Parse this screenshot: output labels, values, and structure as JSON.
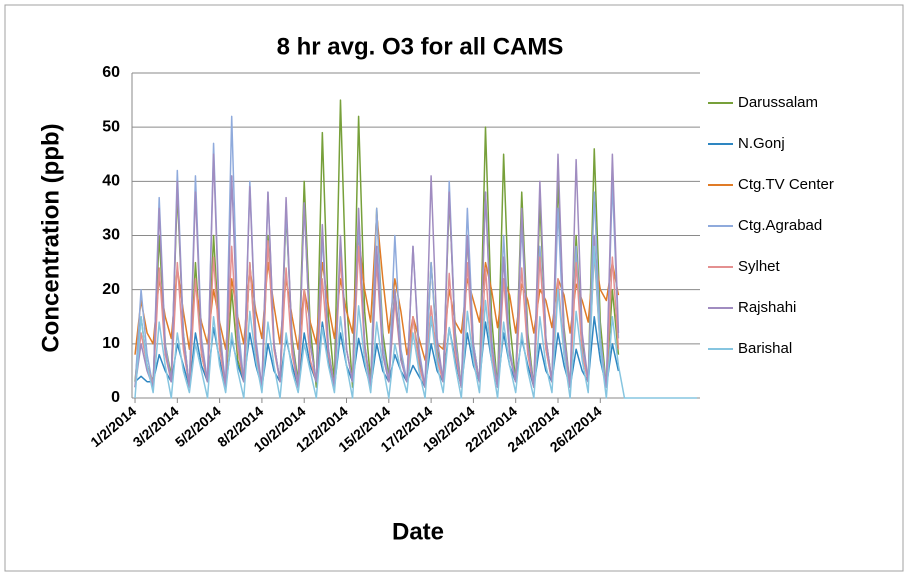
{
  "chart_data": {
    "type": "line",
    "title": "8 hr avg. O3 for all CAMS",
    "x_label": "Date",
    "y_label": "Concentration (ppb)",
    "categories": [
      "1/2/2014",
      null,
      null,
      null,
      null,
      null,
      null,
      "3/2/2014",
      null,
      null,
      null,
      null,
      null,
      null,
      "5/2/2014",
      null,
      null,
      null,
      null,
      null,
      null,
      "8/2/2014",
      null,
      null,
      null,
      null,
      null,
      null,
      "10/2/2014",
      null,
      null,
      null,
      null,
      null,
      null,
      "12/2/2014",
      null,
      null,
      null,
      null,
      null,
      null,
      "15/2/2014",
      null,
      null,
      null,
      null,
      null,
      null,
      "17/2/2014",
      null,
      null,
      null,
      null,
      null,
      null,
      "19/2/2014",
      null,
      null,
      null,
      null,
      null,
      null,
      "22/2/2014",
      null,
      null,
      null,
      null,
      null,
      null,
      "24/2/2014",
      null,
      null,
      null,
      null,
      null,
      null,
      "26/2/2014",
      null,
      null,
      null,
      null,
      null,
      null,
      null,
      null,
      null,
      null,
      null,
      null,
      null,
      null,
      null,
      null
    ],
    "ylim": [
      0,
      60
    ],
    "yticks": [
      0,
      10,
      20,
      30,
      40,
      50,
      60
    ],
    "grid": true,
    "legend": "right",
    "series": [
      {
        "name": "Darussalam",
        "color": "#77a03a",
        "values": [
          3,
          15,
          6,
          3,
          30,
          10,
          4,
          38,
          12,
          2,
          25,
          8,
          3,
          30,
          10,
          2,
          20,
          7,
          3,
          25,
          9,
          2,
          30,
          10,
          3,
          34,
          11,
          3,
          40,
          13,
          2,
          49,
          15,
          3,
          55,
          18,
          2,
          52,
          16,
          3,
          35,
          12,
          4,
          20,
          8,
          3,
          15,
          7,
          2,
          25,
          9,
          3,
          37,
          12,
          2,
          30,
          10,
          3,
          50,
          15,
          2,
          45,
          14,
          3,
          38,
          12,
          2,
          36,
          11,
          3,
          40,
          13,
          2,
          30,
          10,
          3,
          46,
          14,
          2,
          20,
          8,
          null,
          null,
          null,
          null,
          null,
          null,
          null,
          null,
          null,
          null,
          null,
          null,
          null
        ]
      },
      {
        "name": "N.Gonj",
        "color": "#2e86c1",
        "values": [
          3,
          4,
          3,
          3,
          8,
          5,
          3,
          10,
          6,
          2,
          12,
          6,
          3,
          13,
          7,
          2,
          11,
          6,
          3,
          12,
          6,
          2,
          10,
          5,
          3,
          11,
          6,
          2,
          12,
          6,
          3,
          14,
          7,
          2,
          12,
          6,
          3,
          11,
          6,
          2,
          10,
          5,
          3,
          8,
          5,
          3,
          6,
          4,
          2,
          10,
          5,
          3,
          13,
          7,
          2,
          12,
          6,
          3,
          14,
          7,
          2,
          12,
          6,
          3,
          11,
          6,
          2,
          10,
          5,
          3,
          12,
          6,
          2,
          9,
          5,
          3,
          15,
          7,
          2,
          10,
          5,
          null,
          null,
          null,
          null,
          null,
          null,
          null,
          null,
          null,
          null,
          null,
          null,
          null
        ]
      },
      {
        "name": "Ctg.TV Center",
        "color": "#e07b26",
        "values": [
          8,
          18,
          12,
          10,
          22,
          15,
          11,
          24,
          16,
          9,
          21,
          14,
          10,
          20,
          14,
          9,
          22,
          15,
          10,
          24,
          16,
          11,
          25,
          17,
          10,
          22,
          15,
          9,
          20,
          14,
          10,
          25,
          17,
          11,
          22,
          16,
          12,
          30,
          20,
          14,
          34,
          22,
          12,
          22,
          16,
          8,
          15,
          11,
          7,
          14,
          10,
          9,
          20,
          14,
          12,
          22,
          18,
          14,
          25,
          20,
          13,
          22,
          19,
          12,
          21,
          18,
          12,
          20,
          18,
          13,
          22,
          19,
          12,
          21,
          18,
          14,
          27,
          20,
          18,
          25,
          19,
          null,
          null,
          null,
          null,
          null,
          null,
          null,
          null,
          null,
          null,
          null,
          null,
          null
        ]
      },
      {
        "name": "Ctg.Agrabad",
        "color": "#8faadc",
        "values": [
          2,
          20,
          8,
          2,
          37,
          10,
          3,
          42,
          12,
          2,
          41,
          11,
          3,
          47,
          13,
          2,
          52,
          14,
          3,
          40,
          11,
          2,
          38,
          10,
          3,
          35,
          10,
          2,
          36,
          10,
          3,
          30,
          9,
          2,
          28,
          9,
          3,
          32,
          10,
          2,
          35,
          10,
          3,
          30,
          9,
          3,
          28,
          9,
          2,
          25,
          8,
          3,
          40,
          11,
          2,
          35,
          10,
          3,
          38,
          11,
          2,
          30,
          9,
          3,
          32,
          10,
          2,
          28,
          9,
          3,
          35,
          10,
          2,
          28,
          9,
          3,
          38,
          11,
          2,
          40,
          11,
          null,
          null,
          null,
          null,
          null,
          null,
          null,
          null,
          null,
          null,
          null,
          null,
          null
        ]
      },
      {
        "name": "Sylhet",
        "color": "#e49090",
        "values": [
          2,
          12,
          6,
          2,
          24,
          8,
          3,
          25,
          9,
          2,
          22,
          8,
          3,
          26,
          9,
          2,
          28,
          9,
          3,
          25,
          8,
          2,
          29,
          9,
          3,
          24,
          8,
          2,
          20,
          7,
          3,
          22,
          8,
          2,
          26,
          9,
          3,
          28,
          9,
          2,
          25,
          8,
          3,
          18,
          7,
          3,
          15,
          6,
          2,
          17,
          7,
          3,
          23,
          8,
          2,
          25,
          8,
          3,
          24,
          8,
          2,
          22,
          8,
          3,
          24,
          8,
          2,
          26,
          9,
          3,
          22,
          8,
          2,
          25,
          8,
          3,
          27,
          9,
          2,
          26,
          9,
          null,
          null,
          null,
          null,
          null,
          null,
          null,
          null,
          null,
          null,
          null,
          null,
          null
        ]
      },
      {
        "name": "Rajshahi",
        "color": "#a08cc0",
        "values": [
          2,
          10,
          5,
          2,
          35,
          9,
          3,
          40,
          11,
          2,
          38,
          10,
          3,
          45,
          12,
          2,
          41,
          11,
          3,
          39,
          10,
          2,
          38,
          10,
          3,
          37,
          10,
          2,
          36,
          10,
          3,
          32,
          9,
          2,
          30,
          9,
          3,
          35,
          10,
          2,
          28,
          8,
          3,
          20,
          7,
          3,
          28,
          8,
          2,
          41,
          11,
          3,
          38,
          10,
          2,
          30,
          9,
          3,
          38,
          10,
          2,
          26,
          8,
          3,
          35,
          10,
          2,
          40,
          11,
          3,
          45,
          12,
          2,
          44,
          12,
          3,
          30,
          9,
          2,
          45,
          12,
          null,
          null,
          null,
          null,
          null,
          null,
          null,
          null,
          null,
          null,
          null,
          null,
          null
        ]
      },
      {
        "name": "Barishal",
        "color": "#86c5e0",
        "values": [
          0,
          15,
          6,
          1,
          14,
          6,
          0,
          12,
          5,
          1,
          10,
          5,
          0,
          15,
          6,
          1,
          12,
          5,
          0,
          16,
          7,
          1,
          14,
          6,
          0,
          12,
          5,
          1,
          10,
          5,
          0,
          13,
          6,
          1,
          15,
          6,
          0,
          17,
          7,
          1,
          14,
          6,
          0,
          10,
          5,
          1,
          12,
          5,
          0,
          15,
          6,
          1,
          13,
          6,
          0,
          16,
          7,
          1,
          18,
          7,
          0,
          14,
          6,
          1,
          12,
          5,
          0,
          15,
          6,
          1,
          20,
          8,
          0,
          16,
          7,
          1,
          28,
          9,
          0,
          15,
          6,
          0,
          0,
          0,
          0,
          0,
          0,
          0,
          0,
          0,
          0,
          0,
          0,
          0
        ]
      }
    ]
  }
}
